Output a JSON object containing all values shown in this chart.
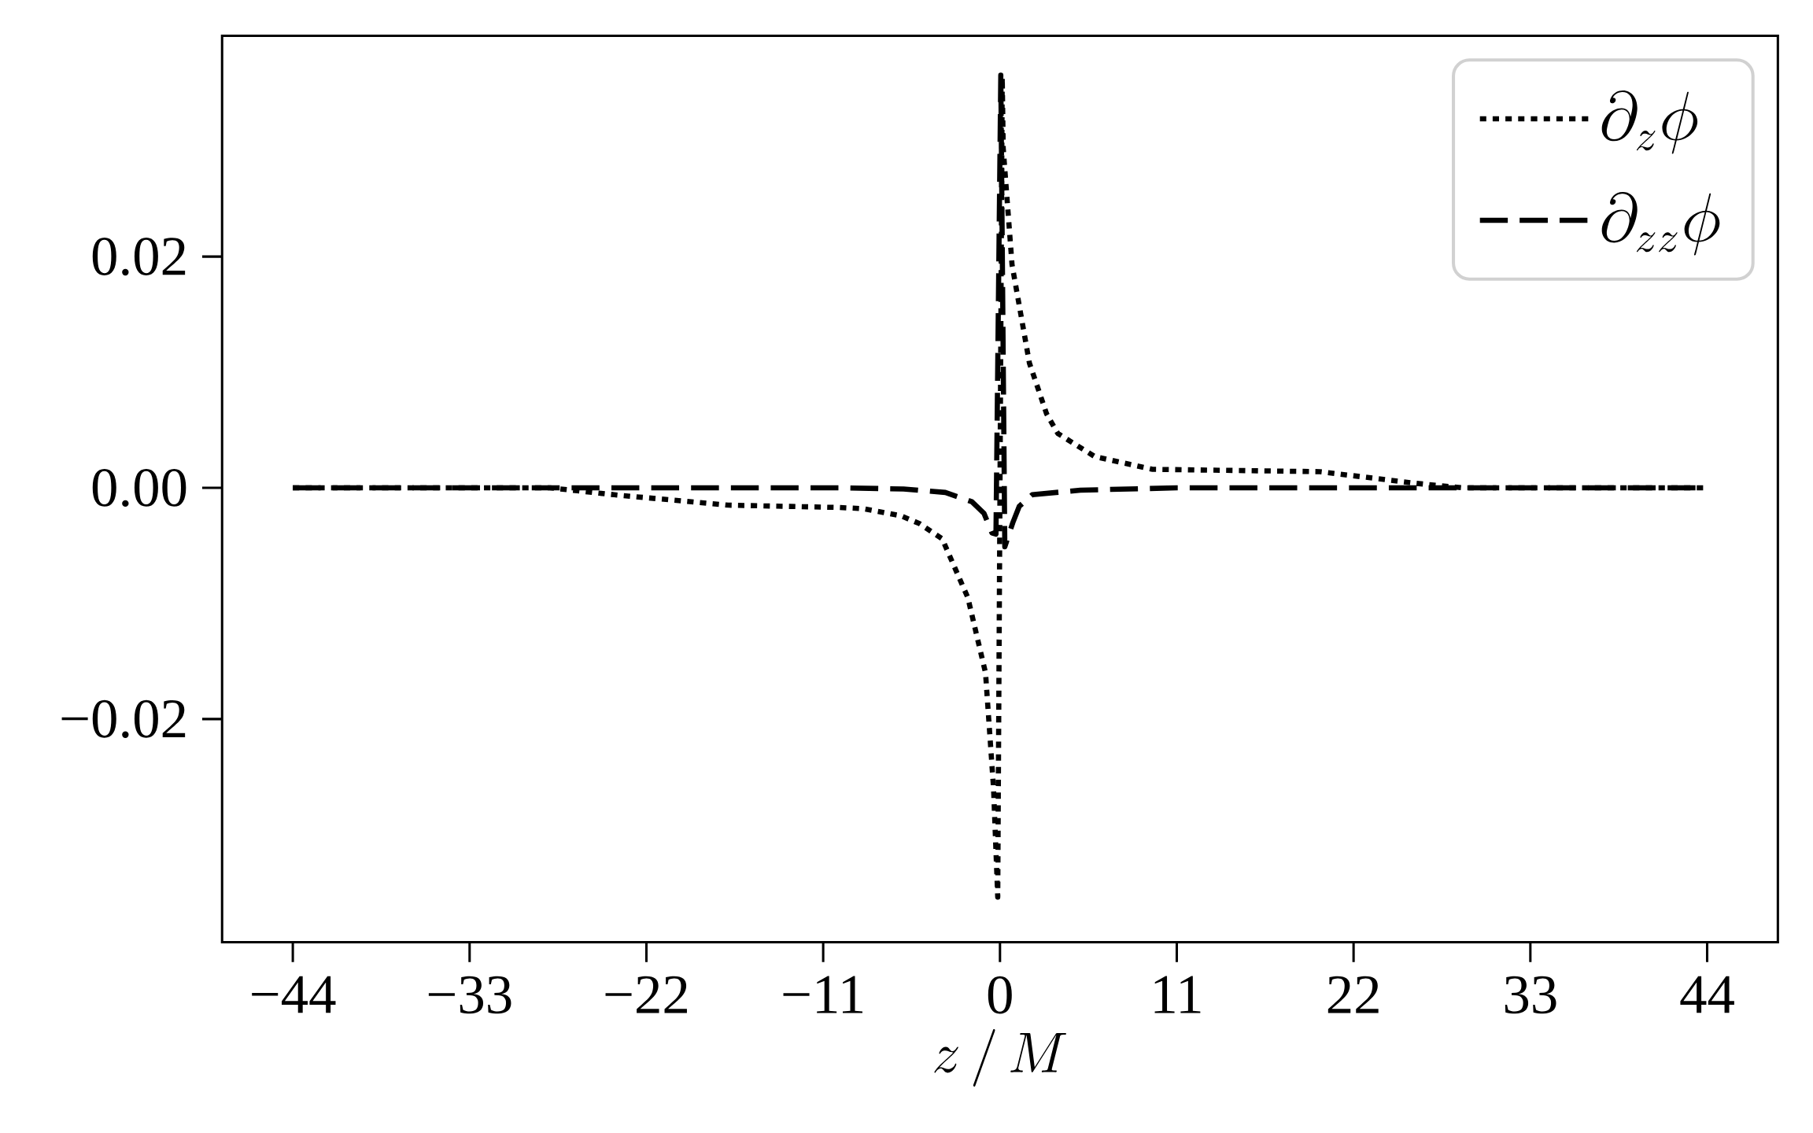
{
  "chart_data": {
    "type": "line",
    "xlabel": "z\\,/\\,M",
    "legend": "top right",
    "xlim": [
      -48.4,
      48.4
    ],
    "ylim": [
      -0.0393,
      0.0391
    ],
    "xticks": [
      {
        "value": -44,
        "label": "−44"
      },
      {
        "value": -33,
        "label": "−33"
      },
      {
        "value": -22,
        "label": "−22"
      },
      {
        "value": -11,
        "label": "−11"
      },
      0,
      11,
      22,
      33,
      44
    ],
    "yticks": [
      {
        "value": -0.02,
        "label": "−0.02"
      },
      {
        "value": 0,
        "label": "0.00"
      },
      0.02
    ],
    "series": [
      {
        "name": "\\partial_z\\phi",
        "color": "#000000",
        "line_style": "dotted",
        "x": [
          -44,
          -28,
          -24,
          -16.9,
          -10,
          -8.5,
          -6.2,
          -5,
          -3.6,
          -2,
          -0.9,
          -0.4,
          -0.14,
          0.14,
          0.2,
          0.75,
          1.83,
          2.9,
          3.6,
          5.9,
          9.5,
          19.9,
          25.8,
          28.8,
          44
        ],
        "values": [
          0,
          0,
          -0.0006,
          -0.0015,
          -0.0017,
          -0.0018,
          -0.0024,
          -0.0031,
          -0.0044,
          -0.0095,
          -0.016,
          -0.026,
          -0.0354,
          0.0355,
          0.0294,
          0.0193,
          0.0108,
          0.0064,
          0.0047,
          0.0027,
          0.0016,
          0.0014,
          0.0004,
          0,
          0
        ]
      },
      {
        "name": "\\partial_{zz}\\phi",
        "color": "#000000",
        "line_style": "dashed",
        "x": [
          -44,
          -10,
          -6,
          -3.4,
          -1.75,
          -1,
          -0.5,
          -0.25,
          0.05,
          0.3,
          0.8,
          1.2,
          2,
          5,
          11,
          44
        ],
        "values": [
          0,
          0,
          -0.0001,
          -0.0004,
          -0.0012,
          -0.0022,
          -0.0039,
          -0.004,
          0.0357,
          -0.0051,
          -0.003,
          -0.0016,
          -0.0006,
          -0.0002,
          0,
          0
        ]
      }
    ]
  }
}
